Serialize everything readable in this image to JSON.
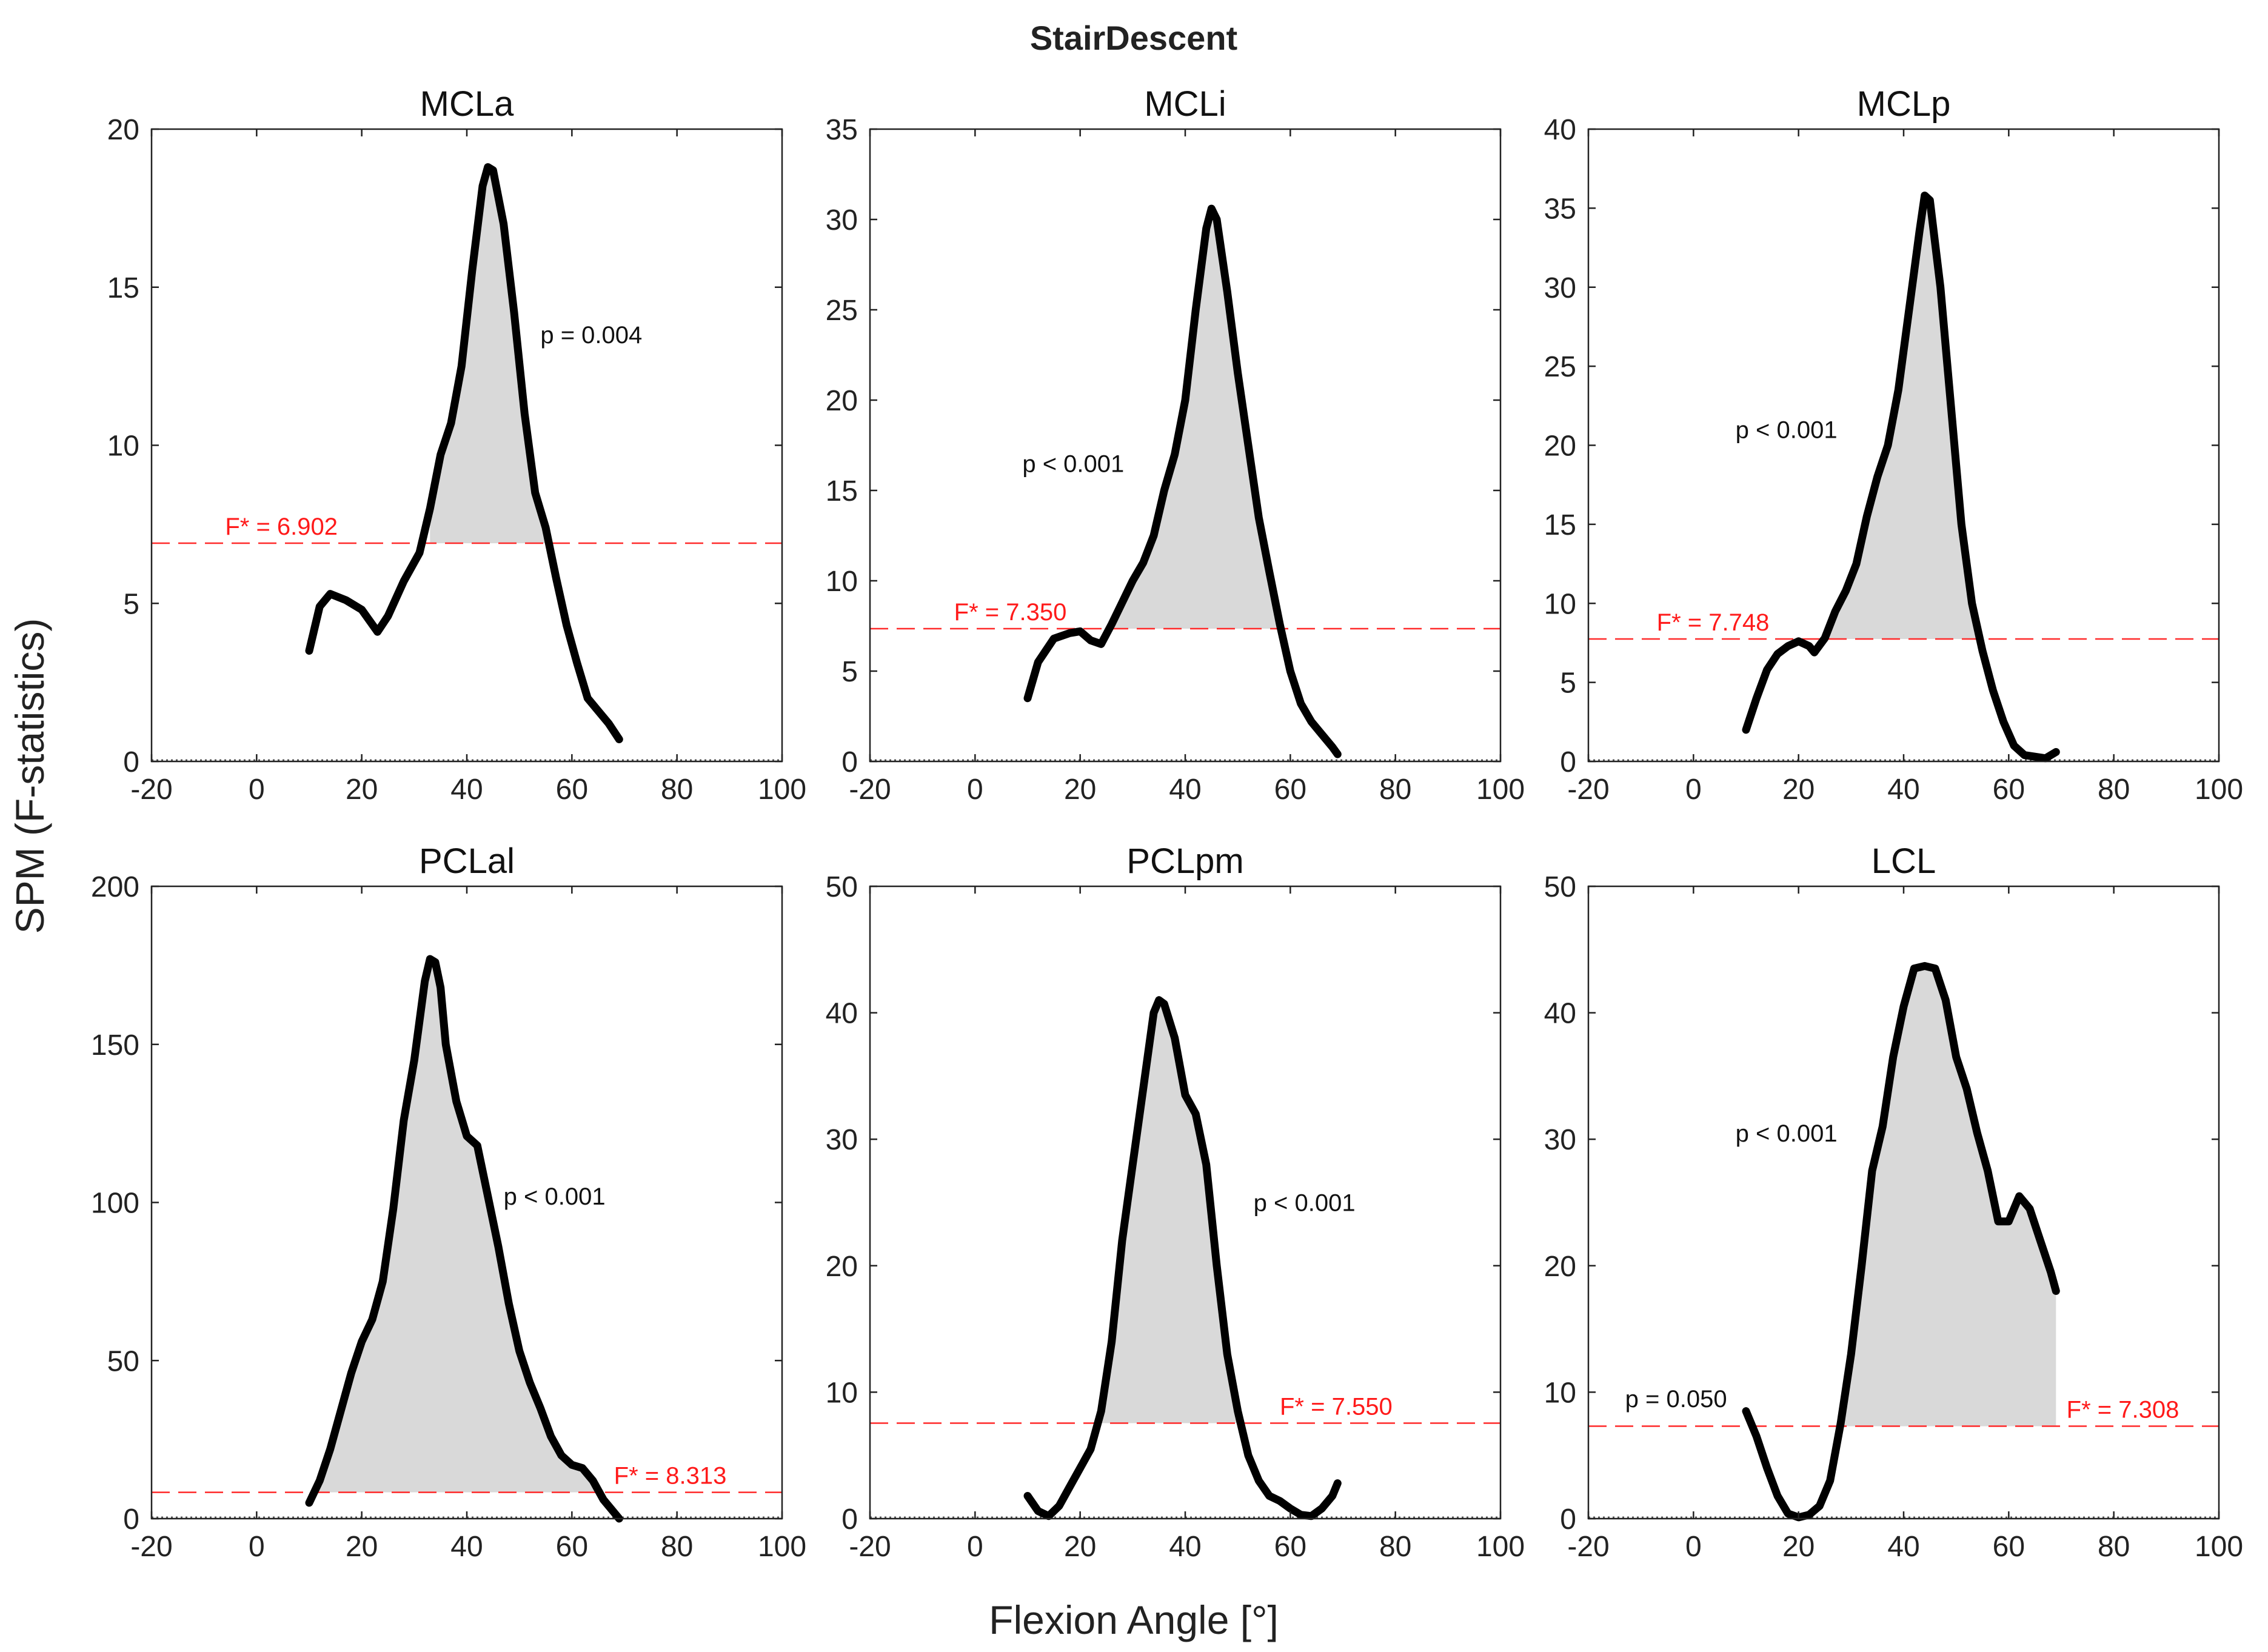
{
  "figure": {
    "suptitle": "StairDescent",
    "xlabel": "Flexion Angle [°]",
    "ylabel": "SPM (F-statistics)"
  },
  "chart_data": [
    {
      "type": "line",
      "title": "MCLa",
      "xlim": [
        -20,
        100
      ],
      "ylim": [
        0,
        20
      ],
      "xticks": [
        -20,
        0,
        20,
        40,
        60,
        80,
        100
      ],
      "yticks": [
        0,
        5,
        10,
        15,
        20
      ],
      "threshold": 6.902,
      "threshold_label": "F* = 6.902",
      "threshold_label_x": -6,
      "annotations": [
        {
          "text": "p = 0.004",
          "x": 54,
          "y": 13.5
        }
      ],
      "x": [
        10,
        12,
        14,
        17,
        20,
        23,
        25,
        28,
        31,
        33,
        35,
        37,
        39,
        41,
        43,
        44,
        45,
        47,
        49,
        51,
        53,
        55,
        57,
        59,
        61,
        63,
        65,
        67,
        69
      ],
      "y": [
        3.5,
        4.9,
        5.3,
        5.1,
        4.8,
        4.1,
        4.6,
        5.7,
        6.6,
        8.0,
        9.7,
        10.7,
        12.5,
        15.5,
        18.2,
        18.8,
        18.7,
        17.0,
        14.2,
        11.0,
        8.5,
        7.4,
        5.8,
        4.3,
        3.1,
        2.0,
        1.6,
        1.2,
        0.7
      ],
      "shade": [
        {
          "from": 33.0,
          "to": 55.8
        }
      ]
    },
    {
      "type": "line",
      "title": "MCLi",
      "xlim": [
        -20,
        100
      ],
      "ylim": [
        0,
        35
      ],
      "xticks": [
        -20,
        0,
        20,
        40,
        60,
        80,
        100
      ],
      "yticks": [
        0,
        5,
        10,
        15,
        20,
        25,
        30,
        35
      ],
      "threshold": 7.35,
      "threshold_label": "F* = 7.350",
      "threshold_label_x": -4,
      "annotations": [
        {
          "text": "p < 0.001",
          "x": 9,
          "y": 16.5
        }
      ],
      "x": [
        10,
        12,
        15,
        18,
        20,
        22,
        24,
        26,
        28,
        30,
        32,
        34,
        36,
        38,
        40,
        42,
        44,
        45,
        46,
        48,
        50,
        52,
        54,
        56,
        58,
        60,
        62,
        64,
        66,
        68,
        69
      ],
      "y": [
        3.5,
        5.5,
        6.8,
        7.1,
        7.2,
        6.7,
        6.5,
        7.6,
        8.8,
        10.0,
        11.0,
        12.5,
        15.0,
        17.0,
        20.0,
        25.0,
        29.5,
        30.6,
        30.0,
        26.0,
        21.5,
        17.5,
        13.5,
        10.5,
        7.6,
        5.0,
        3.2,
        2.2,
        1.5,
        0.8,
        0.4
      ],
      "shade": [
        {
          "from": 25.5,
          "to": 57.8
        }
      ]
    },
    {
      "type": "line",
      "title": "MCLp",
      "xlim": [
        -20,
        100
      ],
      "ylim": [
        0,
        40
      ],
      "xticks": [
        -20,
        0,
        20,
        40,
        60,
        80,
        100
      ],
      "yticks": [
        0,
        5,
        10,
        15,
        20,
        25,
        30,
        35,
        40
      ],
      "threshold": 7.748,
      "threshold_label": "F* = 7.748",
      "threshold_label_x": -7,
      "annotations": [
        {
          "text": "p < 0.001",
          "x": 8,
          "y": 21
        }
      ],
      "x": [
        10,
        12,
        14,
        16,
        18,
        20,
        22,
        23,
        25,
        27,
        29,
        31,
        33,
        35,
        37,
        39,
        41,
        43,
        44,
        45,
        47,
        49,
        51,
        53,
        55,
        57,
        59,
        61,
        63,
        65,
        67,
        69
      ],
      "y": [
        2.0,
        4.0,
        5.8,
        6.8,
        7.3,
        7.6,
        7.3,
        6.9,
        7.8,
        9.5,
        10.8,
        12.5,
        15.5,
        18.0,
        20.0,
        23.5,
        28.5,
        33.5,
        35.8,
        35.5,
        30.0,
        22.5,
        15.0,
        10.0,
        7.0,
        4.5,
        2.5,
        1.0,
        0.4,
        0.3,
        0.2,
        0.6
      ],
      "shade": [
        {
          "from": 25.0,
          "to": 55.3
        }
      ]
    },
    {
      "type": "line",
      "title": "PCLal",
      "xlim": [
        -20,
        100
      ],
      "ylim": [
        0,
        200
      ],
      "xticks": [
        -20,
        0,
        20,
        40,
        60,
        80,
        100
      ],
      "yticks": [
        0,
        50,
        100,
        150,
        200
      ],
      "threshold": 8.313,
      "threshold_label": "F* = 8.313",
      "threshold_label_x": 68,
      "annotations": [
        {
          "text": "p < 0.001",
          "x": 47,
          "y": 102
        }
      ],
      "x": [
        10,
        12,
        14,
        16,
        18,
        20,
        22,
        24,
        26,
        28,
        30,
        32,
        33,
        34,
        35,
        36,
        38,
        40,
        42,
        44,
        46,
        48,
        50,
        52,
        54,
        56,
        58,
        60,
        62,
        64,
        66,
        68,
        69
      ],
      "y": [
        5,
        12,
        22,
        34,
        46,
        56,
        63,
        75,
        98,
        126,
        145,
        170,
        177,
        176,
        168,
        150,
        132,
        121,
        118,
        102,
        86,
        68,
        53,
        43,
        35,
        26,
        20,
        17,
        16,
        12,
        6,
        2,
        0
      ],
      "shade": [
        {
          "from": 11.5,
          "to": 64.5
        }
      ]
    },
    {
      "type": "line",
      "title": "PCLpm",
      "xlim": [
        -20,
        100
      ],
      "ylim": [
        0,
        50
      ],
      "xticks": [
        -20,
        0,
        20,
        40,
        60,
        80,
        100
      ],
      "yticks": [
        0,
        10,
        20,
        30,
        40,
        50
      ],
      "threshold": 7.55,
      "threshold_label": "F* = 7.550",
      "threshold_label_x": 58,
      "annotations": [
        {
          "text": "p < 0.001",
          "x": 53,
          "y": 25
        }
      ],
      "x": [
        10,
        12,
        14,
        16,
        18,
        20,
        22,
        24,
        26,
        28,
        30,
        32,
        34,
        35,
        36,
        38,
        40,
        42,
        44,
        46,
        48,
        50,
        52,
        54,
        56,
        58,
        60,
        62,
        64,
        66,
        68,
        69
      ],
      "y": [
        1.8,
        0.6,
        0.2,
        1.0,
        2.5,
        4.0,
        5.5,
        8.5,
        14.0,
        22.0,
        28.0,
        34.0,
        40.0,
        41.0,
        40.7,
        38.0,
        33.5,
        32.0,
        28.0,
        20.0,
        13.0,
        8.5,
        5.0,
        3.0,
        1.8,
        1.4,
        0.8,
        0.3,
        0.2,
        0.8,
        1.8,
        2.8
      ],
      "shade": [
        {
          "from": 23.7,
          "to": 50.7
        }
      ]
    },
    {
      "type": "line",
      "title": "LCL",
      "xlim": [
        -20,
        100
      ],
      "ylim": [
        0,
        50
      ],
      "xticks": [
        -20,
        0,
        20,
        40,
        60,
        80,
        100
      ],
      "yticks": [
        0,
        10,
        20,
        30,
        40,
        50
      ],
      "threshold": 7.308,
      "threshold_label": "F* = 7.308",
      "threshold_label_x": 71,
      "annotations": [
        {
          "text": "p = 0.050",
          "x": -13,
          "y": 9.5
        },
        {
          "text": "p < 0.001",
          "x": 8,
          "y": 30.5
        }
      ],
      "x": [
        10,
        12,
        14,
        16,
        18,
        20,
        22,
        24,
        26,
        28,
        30,
        32,
        34,
        36,
        38,
        40,
        42,
        44,
        46,
        48,
        50,
        52,
        54,
        56,
        58,
        60,
        62,
        64,
        66,
        68,
        69
      ],
      "y": [
        8.5,
        6.5,
        4.0,
        1.8,
        0.4,
        0.1,
        0.3,
        1.0,
        3.0,
        7.5,
        13.0,
        20.0,
        27.5,
        31.0,
        36.5,
        40.5,
        43.5,
        43.7,
        43.5,
        41.0,
        36.5,
        34.0,
        30.5,
        27.5,
        23.5,
        23.5,
        25.5,
        24.5,
        22.0,
        19.5,
        18.0
      ],
      "shade": [
        {
          "from": 27.9,
          "to": 69
        }
      ]
    }
  ]
}
